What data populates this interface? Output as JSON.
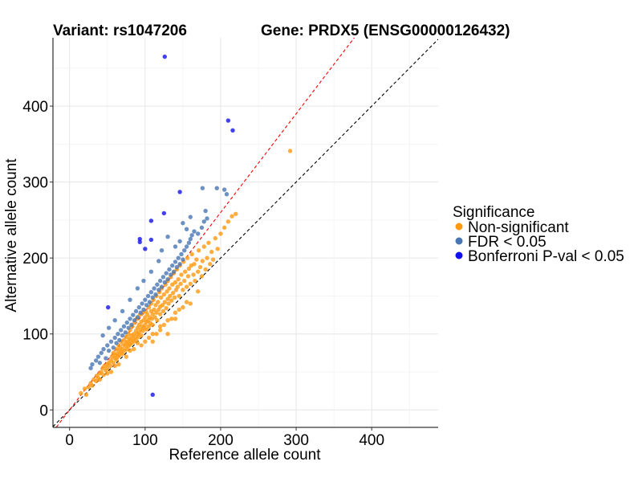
{
  "chart_data": {
    "type": "scatter",
    "title_left": "Variant: rs1047206",
    "title_right": "Gene: PRDX5 (ENSG00000126432)",
    "xlabel": "Reference allele count",
    "ylabel": "Alternative allele count",
    "xlim": [
      -22,
      488
    ],
    "ylim": [
      -23,
      490
    ],
    "xticks": [
      0,
      100,
      200,
      300,
      400
    ],
    "yticks": [
      0,
      100,
      200,
      300,
      400
    ],
    "xtick_labels": [
      "0",
      "100",
      "200",
      "300",
      "400"
    ],
    "ytick_labels": [
      "0",
      "100",
      "200",
      "300",
      "400"
    ],
    "grid": true,
    "legend_title": "Significance",
    "legend_position": "right",
    "reference_lines": [
      {
        "slope": 1.0,
        "intercept": 0,
        "color": "#000000",
        "style": "dashed"
      },
      {
        "slope": 1.3,
        "intercept": 0,
        "color": "#ff0000",
        "style": "dashed"
      }
    ],
    "series": [
      {
        "name": "Non-significant",
        "color": "#ff9912",
        "points": [
          [
            15,
            22
          ],
          [
            20,
            28
          ],
          [
            22,
            20
          ],
          [
            25,
            30
          ],
          [
            28,
            35
          ],
          [
            30,
            32
          ],
          [
            32,
            40
          ],
          [
            35,
            38
          ],
          [
            36,
            45
          ],
          [
            38,
            42
          ],
          [
            40,
            48
          ],
          [
            40,
            40
          ],
          [
            42,
            50
          ],
          [
            44,
            55
          ],
          [
            45,
            46
          ],
          [
            46,
            58
          ],
          [
            48,
            52
          ],
          [
            50,
            60
          ],
          [
            50,
            55
          ],
          [
            52,
            62
          ],
          [
            54,
            58
          ],
          [
            55,
            65
          ],
          [
            55,
            50
          ],
          [
            56,
            70
          ],
          [
            58,
            62
          ],
          [
            58,
            75
          ],
          [
            60,
            68
          ],
          [
            60,
            72
          ],
          [
            62,
            66
          ],
          [
            62,
            80
          ],
          [
            63,
            74
          ],
          [
            64,
            70
          ],
          [
            65,
            78
          ],
          [
            65,
            85
          ],
          [
            66,
            72
          ],
          [
            67,
            82
          ],
          [
            68,
            76
          ],
          [
            68,
            90
          ],
          [
            70,
            80
          ],
          [
            70,
            74
          ],
          [
            71,
            86
          ],
          [
            72,
            92
          ],
          [
            73,
            78
          ],
          [
            74,
            84
          ],
          [
            75,
            96
          ],
          [
            75,
            88
          ],
          [
            76,
            80
          ],
          [
            77,
            90
          ],
          [
            78,
            100
          ],
          [
            78,
            84
          ],
          [
            79,
            94
          ],
          [
            80,
            86
          ],
          [
            80,
            105
          ],
          [
            81,
            92
          ],
          [
            82,
            98
          ],
          [
            82,
            88
          ],
          [
            83,
            110
          ],
          [
            84,
            94
          ],
          [
            85,
            100
          ],
          [
            85,
            90
          ],
          [
            86,
            115
          ],
          [
            87,
            96
          ],
          [
            88,
            104
          ],
          [
            88,
            92
          ],
          [
            89,
            120
          ],
          [
            90,
            100
          ],
          [
            90,
            108
          ],
          [
            91,
            96
          ],
          [
            92,
            112
          ],
          [
            92,
            102
          ],
          [
            93,
            125
          ],
          [
            94,
            106
          ],
          [
            95,
            98
          ],
          [
            95,
            116
          ],
          [
            96,
            110
          ],
          [
            97,
            128
          ],
          [
            97,
            104
          ],
          [
            98,
            118
          ],
          [
            99,
            108
          ],
          [
            100,
            122
          ],
          [
            100,
            112
          ],
          [
            101,
            130
          ],
          [
            102,
            116
          ],
          [
            102,
            106
          ],
          [
            103,
            126
          ],
          [
            104,
            118
          ],
          [
            105,
            135
          ],
          [
            105,
            110
          ],
          [
            106,
            122
          ],
          [
            107,
            114
          ],
          [
            108,
            130
          ],
          [
            108,
            140
          ],
          [
            109,
            120
          ],
          [
            110,
            126
          ],
          [
            110,
            112
          ],
          [
            111,
            145
          ],
          [
            112,
            132
          ],
          [
            113,
            122
          ],
          [
            114,
            138
          ],
          [
            115,
            128
          ],
          [
            115,
            150
          ],
          [
            116,
            118
          ],
          [
            117,
            142
          ],
          [
            118,
            132
          ],
          [
            119,
            155
          ],
          [
            120,
            136
          ],
          [
            120,
            126
          ],
          [
            121,
            148
          ],
          [
            122,
            160
          ],
          [
            123,
            138
          ],
          [
            124,
            130
          ],
          [
            125,
            152
          ],
          [
            126,
            142
          ],
          [
            127,
            165
          ],
          [
            128,
            134
          ],
          [
            129,
            156
          ],
          [
            130,
            146
          ],
          [
            130,
            170
          ],
          [
            131,
            140
          ],
          [
            132,
            160
          ],
          [
            133,
            150
          ],
          [
            134,
            175
          ],
          [
            135,
            144
          ],
          [
            136,
            165
          ],
          [
            137,
            154
          ],
          [
            138,
            180
          ],
          [
            139,
            148
          ],
          [
            140,
            168
          ],
          [
            141,
            158
          ],
          [
            142,
            185
          ],
          [
            143,
            162
          ],
          [
            144,
            172
          ],
          [
            145,
            150
          ],
          [
            146,
            190
          ],
          [
            147,
            166
          ],
          [
            148,
            178
          ],
          [
            150,
            158
          ],
          [
            151,
            195
          ],
          [
            152,
            170
          ],
          [
            153,
            182
          ],
          [
            155,
            162
          ],
          [
            156,
            200
          ],
          [
            157,
            176
          ],
          [
            158,
            186
          ],
          [
            160,
            166
          ],
          [
            161,
            190
          ],
          [
            162,
            205
          ],
          [
            164,
            178
          ],
          [
            165,
            192
          ],
          [
            166,
            170
          ],
          [
            168,
            198
          ],
          [
            170,
            182
          ],
          [
            171,
            210
          ],
          [
            173,
            188
          ],
          [
            175,
            176
          ],
          [
            176,
            196
          ],
          [
            178,
            215
          ],
          [
            180,
            185
          ],
          [
            182,
            200
          ],
          [
            184,
            220
          ],
          [
            186,
            192
          ],
          [
            188,
            208
          ],
          [
            190,
            198
          ],
          [
            193,
            226
          ],
          [
            196,
            212
          ],
          [
            200,
            232
          ],
          [
            205,
            240
          ],
          [
            210,
            248
          ],
          [
            215,
            255
          ],
          [
            220,
            258
          ],
          [
            292,
            341
          ],
          [
            120,
            110
          ],
          [
            130,
            118
          ],
          [
            140,
            128
          ],
          [
            115,
            100
          ],
          [
            105,
            95
          ],
          [
            125,
            112
          ],
          [
            150,
            135
          ],
          [
            160,
            140
          ],
          [
            110,
            90
          ],
          [
            135,
            120
          ],
          [
            145,
            132
          ],
          [
            155,
            142
          ],
          [
            170,
            156
          ],
          [
            95,
            85
          ],
          [
            85,
            80
          ],
          [
            75,
            70
          ],
          [
            65,
            60
          ],
          [
            100,
            90
          ],
          [
            120,
            105
          ],
          [
            140,
            120
          ],
          [
            130,
            100
          ],
          [
            110,
            100
          ],
          [
            90,
            88
          ],
          [
            80,
            78
          ],
          [
            60,
            58
          ],
          [
            50,
            48
          ]
        ]
      },
      {
        "name": "FDR < 0.05",
        "color": "#4876b3",
        "points": [
          [
            28,
            55
          ],
          [
            30,
            60
          ],
          [
            35,
            65
          ],
          [
            38,
            70
          ],
          [
            40,
            62
          ],
          [
            42,
            75
          ],
          [
            45,
            80
          ],
          [
            48,
            68
          ],
          [
            50,
            85
          ],
          [
            52,
            78
          ],
          [
            55,
            90
          ],
          [
            58,
            82
          ],
          [
            60,
            95
          ],
          [
            62,
            88
          ],
          [
            64,
            100
          ],
          [
            66,
            92
          ],
          [
            68,
            105
          ],
          [
            70,
            98
          ],
          [
            72,
            110
          ],
          [
            74,
            102
          ],
          [
            76,
            115
          ],
          [
            78,
            108
          ],
          [
            80,
            120
          ],
          [
            82,
            112
          ],
          [
            84,
            125
          ],
          [
            86,
            118
          ],
          [
            88,
            130
          ],
          [
            90,
            122
          ],
          [
            92,
            135
          ],
          [
            94,
            128
          ],
          [
            96,
            140
          ],
          [
            98,
            132
          ],
          [
            100,
            145
          ],
          [
            102,
            138
          ],
          [
            104,
            150
          ],
          [
            106,
            142
          ],
          [
            108,
            155
          ],
          [
            110,
            148
          ],
          [
            112,
            160
          ],
          [
            114,
            152
          ],
          [
            116,
            165
          ],
          [
            118,
            158
          ],
          [
            120,
            170
          ],
          [
            122,
            162
          ],
          [
            124,
            175
          ],
          [
            126,
            168
          ],
          [
            128,
            180
          ],
          [
            130,
            172
          ],
          [
            132,
            185
          ],
          [
            134,
            178
          ],
          [
            136,
            190
          ],
          [
            138,
            182
          ],
          [
            140,
            195
          ],
          [
            142,
            188
          ],
          [
            144,
            200
          ],
          [
            146,
            192
          ],
          [
            148,
            205
          ],
          [
            150,
            198
          ],
          [
            152,
            210
          ],
          [
            155,
            215
          ],
          [
            158,
            220
          ],
          [
            160,
            225
          ],
          [
            162,
            230
          ],
          [
            165,
            235
          ],
          [
            170,
            232
          ],
          [
            175,
            240
          ],
          [
            178,
            248
          ],
          [
            180,
            262
          ],
          [
            182,
            252
          ],
          [
            176,
            292
          ],
          [
            195,
            292
          ],
          [
            205,
            290
          ],
          [
            208,
            284
          ],
          [
            160,
            254
          ],
          [
            150,
            246
          ],
          [
            155,
            238
          ],
          [
            130,
            228
          ],
          [
            140,
            215
          ],
          [
            146,
            222
          ],
          [
            122,
            210
          ],
          [
            118,
            196
          ],
          [
            108,
            182
          ],
          [
            98,
            170
          ],
          [
            90,
            160
          ],
          [
            80,
            145
          ],
          [
            70,
            130
          ],
          [
            60,
            118
          ],
          [
            52,
            108
          ],
          [
            44,
            98
          ]
        ]
      },
      {
        "name": "Bonferroni P-val < 0.05",
        "color": "#1111ee",
        "points": [
          [
            126,
            465
          ],
          [
            210,
            381
          ],
          [
            216,
            368
          ],
          [
            146,
            287
          ],
          [
            125,
            259
          ],
          [
            108,
            249
          ],
          [
            93,
            225
          ],
          [
            93,
            221
          ],
          [
            108,
            224
          ],
          [
            100,
            212
          ],
          [
            51,
            135
          ],
          [
            110,
            20
          ]
        ]
      }
    ]
  }
}
